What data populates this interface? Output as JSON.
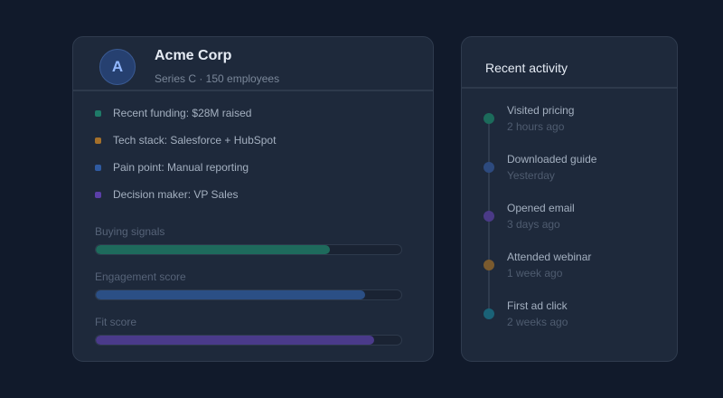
{
  "company": {
    "avatar_letter": "A",
    "name": "Acme Corp",
    "subtitle": "Series C · 150 employees",
    "facts": [
      {
        "text": "Recent funding: $28M raised",
        "color": "#1f7a68"
      },
      {
        "text": "Tech stack: Salesforce + HubSpot",
        "color": "#a5702a"
      },
      {
        "text": "Pain point: Manual reporting",
        "color": "#2f5aa0"
      },
      {
        "text": "Decision maker: VP Sales",
        "color": "#5b3fa8"
      }
    ],
    "metrics": [
      {
        "label": "Buying signals",
        "value": 0.765,
        "color": "#1e6a5c"
      },
      {
        "label": "Engagement score",
        "value": 0.882,
        "color": "#2b4f85"
      },
      {
        "label": "Fit score",
        "value": 0.912,
        "color": "#4a3a8a"
      }
    ]
  },
  "activity": {
    "title": "Recent activity",
    "events": [
      {
        "title": "Visited pricing",
        "time": "2 hours ago",
        "color": "#1c6b5b"
      },
      {
        "title": "Downloaded guide",
        "time": "Yesterday",
        "color": "#2d4a7e"
      },
      {
        "title": "Opened email",
        "time": "3 days ago",
        "color": "#4a3a87"
      },
      {
        "title": "Attended webinar",
        "time": "1 week ago",
        "color": "#7a5a2e"
      },
      {
        "title": "First ad click",
        "time": "2 weeks ago",
        "color": "#1a6277"
      }
    ]
  }
}
